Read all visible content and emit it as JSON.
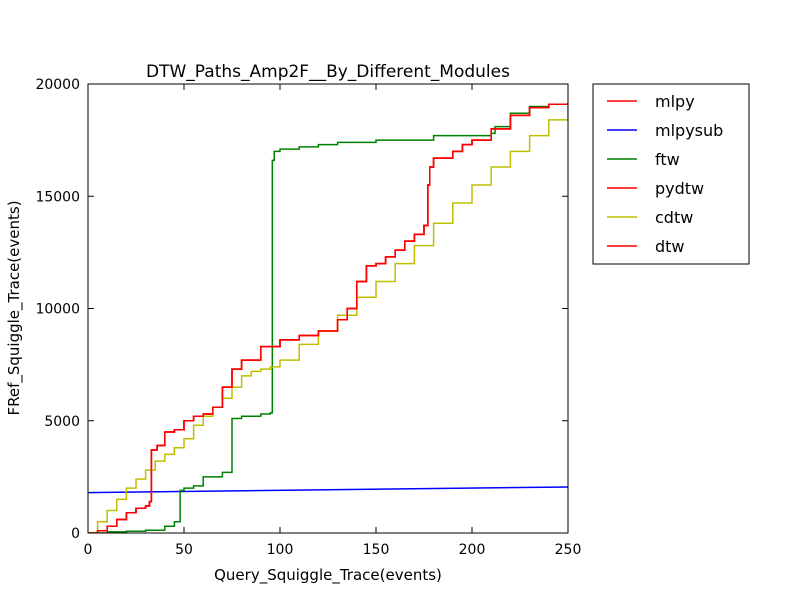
{
  "chart_data": {
    "type": "line",
    "title": "DTW_Paths_Amp2F__By_Different_Modules",
    "xlabel": "Query_Squiggle_Trace(events)",
    "ylabel": "FRef_Squiggle_Trace(events)",
    "xlim": [
      0,
      250
    ],
    "ylim": [
      0,
      20000
    ],
    "xticks": [
      0,
      50,
      100,
      150,
      200,
      250
    ],
    "yticks": [
      0,
      5000,
      10000,
      15000,
      20000
    ],
    "grid": false,
    "legend_position": "outside-top-right",
    "series": [
      {
        "name": "mlpy",
        "color": "#ff0000",
        "step": true,
        "x": [
          0,
          5,
          10,
          15,
          20,
          25,
          30,
          32,
          33,
          36,
          40,
          45,
          50,
          55,
          60,
          65,
          70,
          75,
          80,
          90,
          100,
          110,
          120,
          130,
          135,
          140,
          145,
          150,
          155,
          160,
          165,
          170,
          175,
          177,
          178,
          180,
          190,
          195,
          200,
          210,
          220,
          230,
          240,
          250
        ],
        "y": [
          0,
          100,
          300,
          600,
          900,
          1100,
          1200,
          1400,
          3700,
          3900,
          4500,
          4600,
          5000,
          5200,
          5300,
          5600,
          6500,
          7300,
          7700,
          8300,
          8600,
          8800,
          9000,
          9500,
          10000,
          11200,
          11900,
          12000,
          12300,
          12600,
          13000,
          13300,
          13700,
          15500,
          16300,
          16700,
          17000,
          17300,
          17500,
          18000,
          18600,
          18950,
          19100,
          19150
        ]
      },
      {
        "name": "mlpysub",
        "color": "#0000ff",
        "step": false,
        "x": [
          0,
          250
        ],
        "y": [
          1800,
          2050
        ]
      },
      {
        "name": "ftw",
        "color": "#008000",
        "step": true,
        "x": [
          0,
          10,
          20,
          30,
          40,
          45,
          48,
          50,
          55,
          60,
          70,
          75,
          80,
          90,
          95,
          96,
          97,
          100,
          110,
          120,
          130,
          150,
          180,
          210,
          212,
          220,
          230,
          240,
          250
        ],
        "y": [
          0,
          50,
          80,
          120,
          300,
          500,
          1900,
          2000,
          2100,
          2500,
          2700,
          5100,
          5200,
          5300,
          5350,
          16600,
          17000,
          17100,
          17200,
          17300,
          17400,
          17500,
          17700,
          17800,
          18100,
          18700,
          19000,
          19100,
          19150
        ]
      },
      {
        "name": "pydtw",
        "color": "#ff0000",
        "step": true,
        "x": [
          0,
          5,
          10,
          15,
          20,
          25,
          30,
          32,
          33,
          36,
          40,
          45,
          50,
          55,
          60,
          65,
          70,
          75,
          80,
          90,
          100,
          110,
          120,
          130,
          135,
          140,
          145,
          150,
          155,
          160,
          165,
          170,
          175,
          177,
          178,
          180,
          190,
          195,
          200,
          210,
          220,
          230,
          240,
          250
        ],
        "y": [
          0,
          100,
          300,
          600,
          900,
          1100,
          1200,
          1400,
          3700,
          3900,
          4500,
          4600,
          5000,
          5200,
          5300,
          5600,
          6500,
          7300,
          7700,
          8300,
          8600,
          8800,
          9000,
          9500,
          10000,
          11200,
          11900,
          12000,
          12300,
          12600,
          13000,
          13300,
          13700,
          15500,
          16300,
          16700,
          17000,
          17300,
          17500,
          18000,
          18600,
          18950,
          19100,
          19150
        ]
      },
      {
        "name": "cdtw",
        "color": "#bfbf00",
        "step": true,
        "x": [
          0,
          5,
          10,
          15,
          20,
          25,
          30,
          35,
          40,
          45,
          50,
          55,
          60,
          65,
          70,
          75,
          80,
          85,
          90,
          95,
          100,
          110,
          120,
          130,
          140,
          150,
          160,
          170,
          180,
          190,
          200,
          210,
          220,
          230,
          240,
          250
        ],
        "y": [
          0,
          500,
          1000,
          1500,
          2000,
          2400,
          2800,
          3200,
          3500,
          3800,
          4200,
          4800,
          5200,
          5600,
          6000,
          6500,
          7000,
          7200,
          7300,
          7400,
          7700,
          8400,
          9000,
          9700,
          10500,
          11200,
          12000,
          12800,
          13800,
          14700,
          15500,
          16300,
          17000,
          17700,
          18400,
          19200
        ]
      },
      {
        "name": "dtw",
        "color": "#ff0000",
        "step": true,
        "x": [
          0,
          5,
          10,
          15,
          20,
          25,
          30,
          32,
          33,
          36,
          40,
          45,
          50,
          55,
          60,
          65,
          70,
          75,
          80,
          90,
          100,
          110,
          120,
          130,
          135,
          140,
          145,
          150,
          155,
          160,
          165,
          170,
          175,
          177,
          178,
          180,
          190,
          195,
          200,
          210,
          220,
          230,
          240,
          250
        ],
        "y": [
          0,
          100,
          300,
          600,
          900,
          1100,
          1200,
          1400,
          3700,
          3900,
          4500,
          4600,
          5000,
          5200,
          5300,
          5600,
          6500,
          7300,
          7700,
          8300,
          8600,
          8800,
          9000,
          9500,
          10000,
          11200,
          11900,
          12000,
          12300,
          12600,
          13000,
          13300,
          13700,
          15500,
          16300,
          16700,
          17000,
          17300,
          17500,
          18000,
          18600,
          18950,
          19100,
          19150
        ]
      }
    ]
  }
}
